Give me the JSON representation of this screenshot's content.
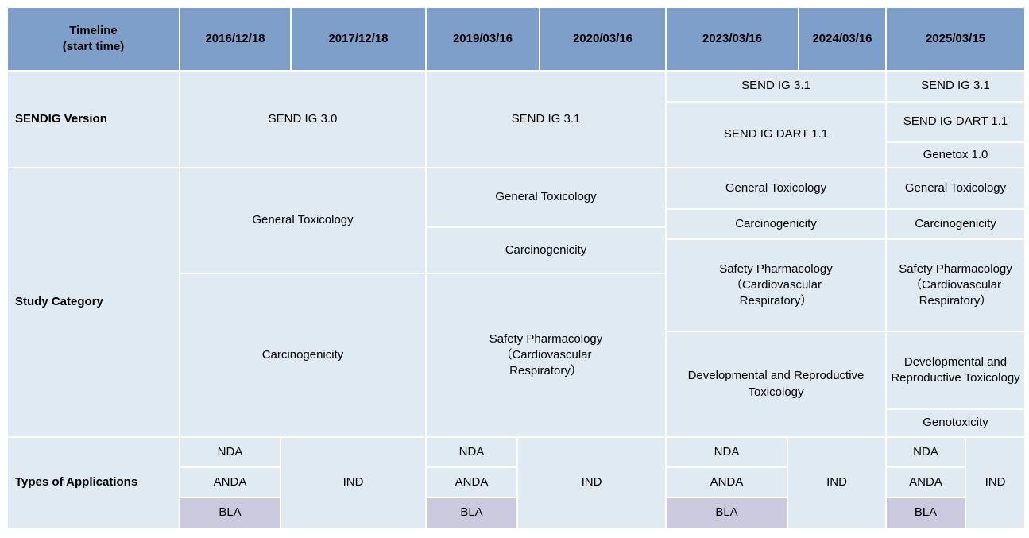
{
  "colors": {
    "header_bg": "#7d9fc9",
    "cell_bg": "#dfeaf2",
    "bla_bg": "#cac9de",
    "grid_line": "#ffffff",
    "text": "#000000"
  },
  "header": {
    "timeline_line1": "Timeline",
    "timeline_line2": "(start time)",
    "dates": [
      "2016/12/18",
      "2017/12/18",
      "2019/03/16",
      "2020/03/16",
      "2023/03/16",
      "2024/03/16",
      "2025/03/15"
    ]
  },
  "sendig": {
    "label": "SENDIG Version",
    "period_2016_2017": "SEND IG 3.0",
    "period_2019_2020": "SEND IG 3.1",
    "period_2023_2024": [
      "SEND IG 3.1",
      "SEND IG DART 1.1"
    ],
    "period_2025": [
      "SEND IG 3.1",
      "SEND IG DART 1.1",
      "Genetox 1.0"
    ]
  },
  "study": {
    "label": "Study Category",
    "period_2016_2017": [
      "General Toxicology",
      "Carcinogenicity"
    ],
    "period_2019_2020": [
      "General Toxicology",
      "Carcinogenicity",
      "Safety Pharmacology\n（Cardiovascular\nRespiratory）"
    ],
    "period_2023_2024": [
      "General Toxicology",
      "Carcinogenicity",
      "Safety Pharmacology\n（Cardiovascular\nRespiratory）",
      "Developmental and Reproductive Toxicology"
    ],
    "period_2025": [
      "General Toxicology",
      "Carcinogenicity",
      "Safety Pharmacology\n（Cardiovascular\nRespiratory）",
      "Developmental and Reproductive Toxicology",
      "Genotoxicity"
    ]
  },
  "applications": {
    "label": "Types of Applications",
    "period_2016_2017": {
      "stack": [
        "NDA",
        "ANDA",
        "BLA"
      ],
      "merged": "IND"
    },
    "period_2019_2020": {
      "stack": [
        "NDA",
        "ANDA",
        "BLA"
      ],
      "merged": "IND"
    },
    "period_2023_2024": {
      "stack": [
        "NDA",
        "ANDA",
        "BLA"
      ],
      "merged": "IND"
    },
    "period_2025": {
      "stack": [
        "NDA",
        "ANDA",
        "BLA"
      ],
      "merged": "IND"
    }
  }
}
